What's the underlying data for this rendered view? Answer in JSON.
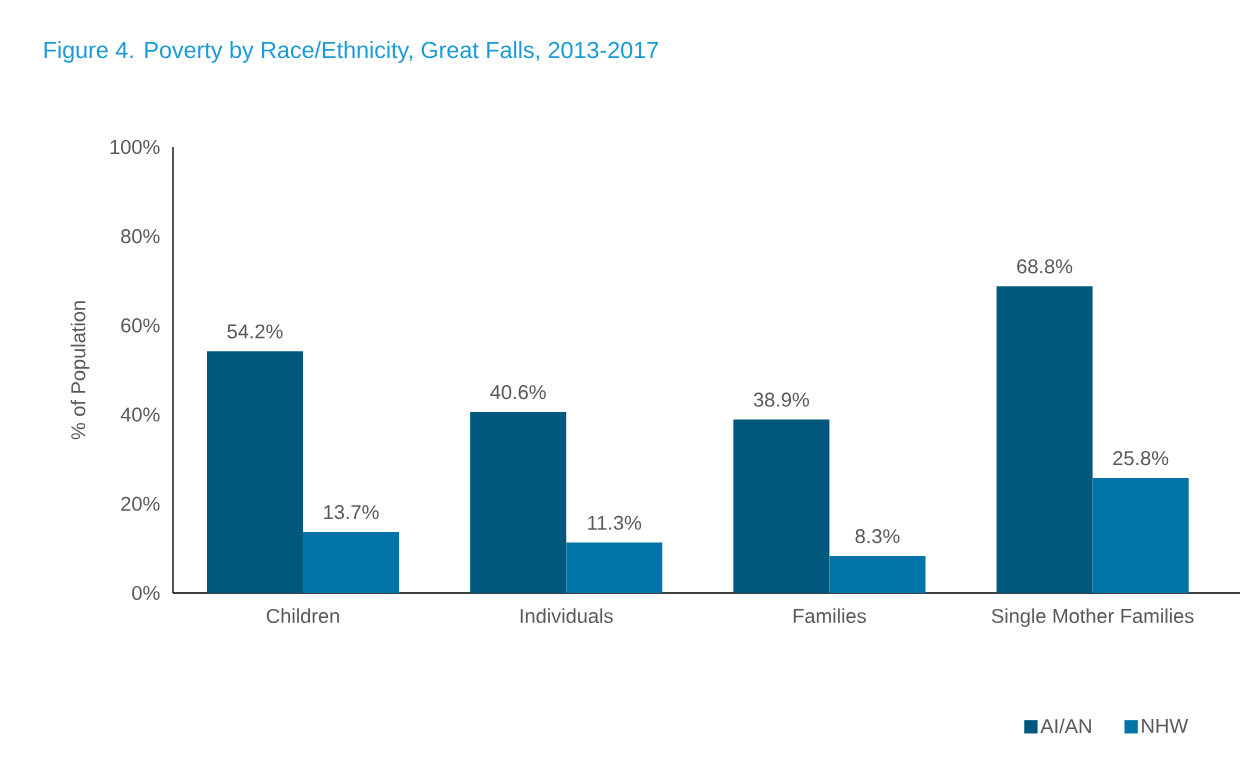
{
  "chart_data": {
    "type": "bar",
    "title": "Figure 4. Poverty by Race/Ethnicity, Great Falls, 2013-2017",
    "ylabel": "% of Population",
    "categories": [
      "Children",
      "Individuals",
      "Families",
      "Single Mother Families"
    ],
    "series": [
      {
        "name": "AI/AN",
        "color": "#00587c",
        "values": [
          54.2,
          40.6,
          38.9,
          68.8
        ],
        "value_labels": [
          "54.2%",
          "40.6%",
          "38.9%",
          "68.8%"
        ]
      },
      {
        "name": "NHW",
        "color": "#0074a6",
        "values": [
          13.7,
          11.3,
          8.3,
          25.8
        ],
        "value_labels": [
          "13.7%",
          "11.3%",
          "8.3%",
          "25.8%"
        ]
      }
    ],
    "ylim": [
      0,
      100
    ],
    "yticks": [
      {
        "value": 0,
        "label": "0%"
      },
      {
        "value": 20,
        "label": "20%"
      },
      {
        "value": 40,
        "label": "40%"
      },
      {
        "value": 60,
        "label": "60%"
      },
      {
        "value": 80,
        "label": "80%"
      },
      {
        "value": 100,
        "label": "100%"
      }
    ],
    "legend": "bottom right"
  }
}
